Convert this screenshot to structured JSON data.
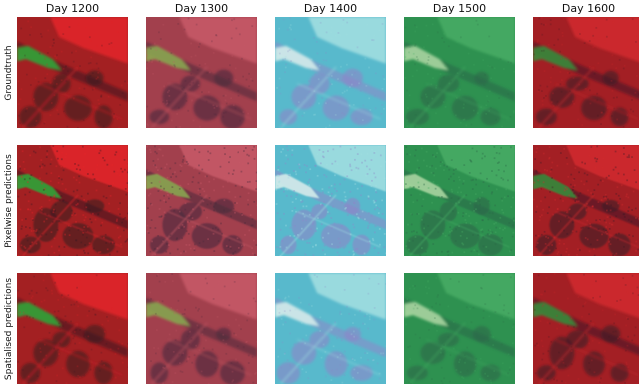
{
  "columns": [
    "Day 1200",
    "Day 1300",
    "Day 1400",
    "Day 1500",
    "Day 1600"
  ],
  "rows": [
    "Groundtruth",
    "Pixelwise predictions",
    "Spatialised predictions"
  ],
  "palettes": {
    "Day 1200": {
      "base": "#a32022",
      "dark": "#3c1a22",
      "bright": "#e4252a",
      "accent": "#32a33a"
    },
    "Day 1300": {
      "base": "#a2404d",
      "dark": "#4a2a3c",
      "bright": "#c85a68",
      "accent": "#8aa650"
    },
    "Day 1400": {
      "base": "#58b9cc",
      "dark": "#8e86c8",
      "bright": "#a4dfe2",
      "accent": "#d4ecea"
    },
    "Day 1500": {
      "base": "#2e9150",
      "dark": "#2c6848",
      "bright": "#48ad65",
      "accent": "#a8d6a0"
    },
    "Day 1600": {
      "base": "#a31f24",
      "dark": "#3e1a24",
      "bright": "#d22a2e",
      "accent": "#3a8a3a"
    }
  }
}
